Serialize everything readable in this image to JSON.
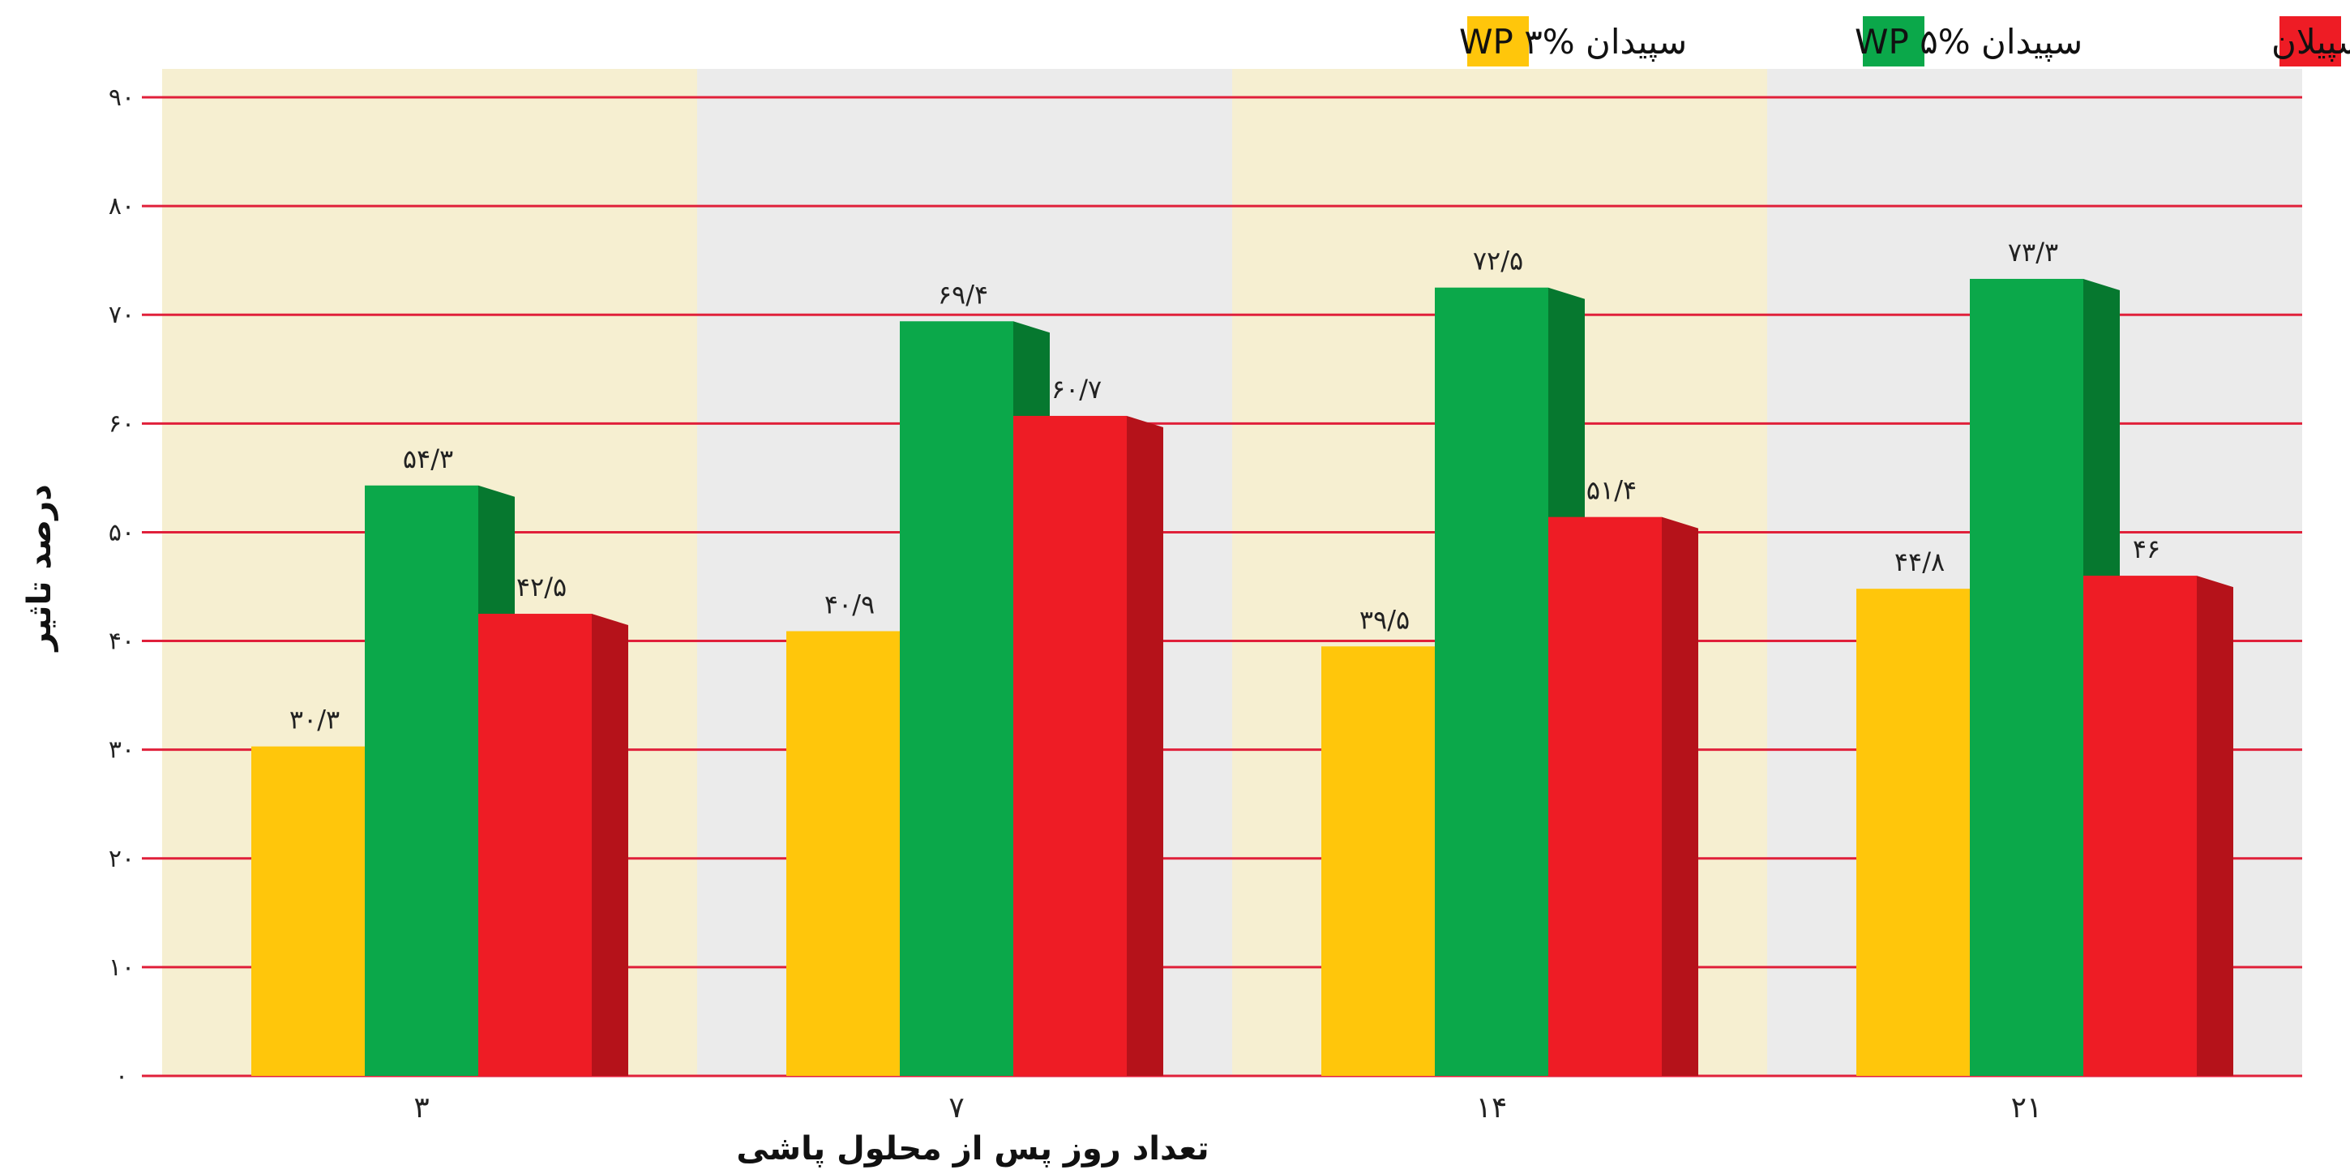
{
  "chart_data": {
    "type": "bar",
    "xlabel": "تعداد روز پس از محلول پاشی",
    "ylabel": "درصد تاثیر",
    "ylim": [
      0,
      90
    ],
    "yticks": [
      0,
      10,
      20,
      30,
      40,
      50,
      60,
      70,
      80,
      90
    ],
    "ytick_labels": [
      "۰",
      "۱۰",
      "۲۰",
      "۳۰",
      "۴۰",
      "۵۰",
      "۶۰",
      "۷۰",
      "۸۰",
      "۹۰"
    ],
    "categories": [
      "۳",
      "۷",
      "۱۴",
      "۲۱"
    ],
    "grid": true,
    "legend_position": "top",
    "series": [
      {
        "name": "سپیدان WP ۳%",
        "color": "#FFC60B",
        "shade": "#E0A800",
        "values": [
          30.3,
          40.9,
          39.5,
          44.8
        ],
        "labels": [
          "۳۰/۳",
          "۴۰/۹",
          "۳۹/۵",
          "۴۴/۸"
        ]
      },
      {
        "name": "سپیدان WP ۵%",
        "color": "#0BA84A",
        "shade": "#06782F",
        "values": [
          54.3,
          69.4,
          72.5,
          73.3
        ],
        "labels": [
          "۵۴/۳",
          "۶۹/۴",
          "۷۲/۵",
          "۷۳/۳"
        ]
      },
      {
        "name": "موسپیلان",
        "color": "#EE1C25",
        "shade": "#B5121A",
        "values": [
          42.5,
          60.7,
          51.4,
          46
        ],
        "labels": [
          "۴۲/۵",
          "۶۰/۷",
          "۵۱/۴",
          "۴۶"
        ]
      }
    ],
    "band_colors": [
      "#F6EFD1",
      "#EBEBEB"
    ],
    "gridline_color": "#E0203A"
  }
}
